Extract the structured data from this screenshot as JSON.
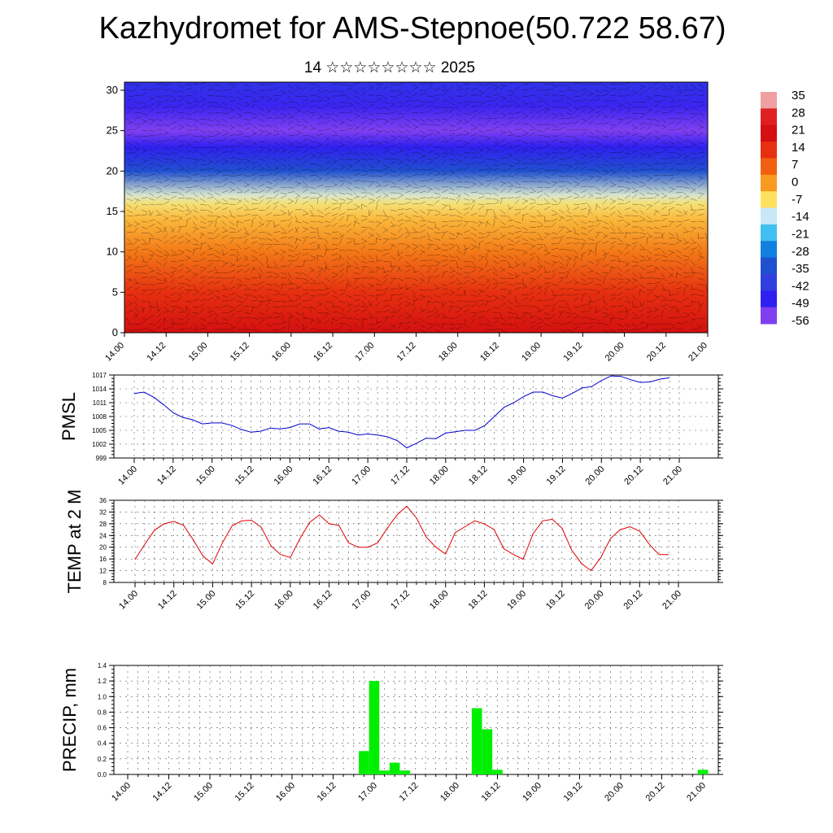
{
  "title": "Kazhydromet for AMS-Stepnoe(50.722 58.67)",
  "subtitle": "14 ☆☆☆☆☆☆☆☆ 2025",
  "colors": {
    "pmsl_line": "#0000cc",
    "temp_line": "#dd0000",
    "precip_bar": "#00ee00"
  },
  "chart_data": [
    {
      "type": "heatmap",
      "title": "",
      "ylim": [
        0,
        31
      ],
      "yticks": [
        "0",
        "5",
        "10",
        "15",
        "20",
        "25",
        "30"
      ],
      "x_tick_labels": [
        "14.00",
        "14.12",
        "15.00",
        "15.12",
        "16.00",
        "16.12",
        "17.00",
        "17.12",
        "18.00",
        "18.12",
        "19.00",
        "19.12",
        "20.00",
        "20.12",
        "21.00"
      ],
      "colorbar": {
        "labels": [
          "35",
          "28",
          "21",
          "14",
          "7",
          "0",
          "-7",
          "-14",
          "-21",
          "-28",
          "-35",
          "-42",
          "-49",
          "-56"
        ],
        "colors": [
          "#f0a0a0",
          "#e02020",
          "#d41010",
          "#e63010",
          "#f06010",
          "#f89a20",
          "#fde060",
          "#c8e8f8",
          "#40c0f0",
          "#1080e0",
          "#2050d0",
          "#3040e0",
          "#3020f0",
          "#8040f0"
        ]
      },
      "temperature_profile": {
        "heights": [
          0,
          5,
          10,
          14,
          16,
          17,
          20,
          23,
          25,
          28,
          31
        ],
        "values": [
          21,
          14,
          4,
          -3,
          -8,
          -12,
          -35,
          -49,
          -56,
          -50,
          -45
        ]
      },
      "legend": "right"
    },
    {
      "type": "line",
      "ylabel": "PMSL",
      "ylim": [
        999,
        1017
      ],
      "yticks": [
        "999",
        "1002",
        "1005",
        "1008",
        "1011",
        "1014",
        "1017"
      ],
      "x_tick_labels": [
        "14.00",
        "14.12",
        "15.00",
        "15.12",
        "16.00",
        "16.12",
        "17.00",
        "17.12",
        "18.00",
        "18.12",
        "19.00",
        "19.12",
        "20.00",
        "20.12",
        "21.00"
      ],
      "x_hours": [
        0,
        3,
        6,
        9,
        12,
        15,
        18,
        21,
        24,
        27,
        30,
        33,
        36,
        39,
        42,
        45,
        48,
        51,
        54,
        57,
        60,
        63,
        66,
        69,
        72,
        75,
        78,
        81,
        84,
        87,
        90,
        93,
        96,
        99,
        102,
        105,
        108,
        111,
        114,
        117,
        120,
        123,
        126,
        129,
        132,
        135,
        138,
        141,
        144,
        147,
        150,
        153,
        156,
        159,
        162,
        165
      ],
      "values": [
        1013.0,
        1013.3,
        1012.2,
        1010.6,
        1008.8,
        1007.8,
        1007.3,
        1006.4,
        1006.6,
        1006.6,
        1006.1,
        1005.2,
        1004.6,
        1004.8,
        1005.5,
        1005.3,
        1005.6,
        1006.4,
        1006.4,
        1005.3,
        1005.6,
        1004.8,
        1004.6,
        1004.0,
        1004.2,
        1004.0,
        1003.6,
        1002.8,
        1001.2,
        1002.2,
        1003.3,
        1003.2,
        1004.4,
        1004.7,
        1005.0,
        1005.0,
        1006.0,
        1008.0,
        1010.0,
        1011.0,
        1012.3,
        1013.3,
        1013.3,
        1012.5,
        1012.0,
        1013.0,
        1014.2,
        1014.5,
        1015.8,
        1016.8,
        1016.7,
        1016.0,
        1015.4,
        1015.5,
        1016.1,
        1016.4
      ]
    },
    {
      "type": "line",
      "ylabel": "TEMP at 2 M",
      "ylim": [
        8,
        36
      ],
      "yticks": [
        "8",
        "12",
        "16",
        "20",
        "24",
        "28",
        "32",
        "36"
      ],
      "x_tick_labels": [
        "14.00",
        "14.12",
        "15.00",
        "15.12",
        "16.00",
        "16.12",
        "17.00",
        "17.12",
        "18.00",
        "18.12",
        "19.00",
        "19.12",
        "20.00",
        "20.12",
        "21.00"
      ],
      "x_hours": [
        0,
        3,
        6,
        9,
        12,
        15,
        18,
        21,
        24,
        27,
        30,
        33,
        36,
        39,
        42,
        45,
        48,
        51,
        54,
        57,
        60,
        63,
        66,
        69,
        72,
        75,
        78,
        81,
        84,
        87,
        90,
        93,
        96,
        99,
        102,
        105,
        108,
        111,
        114,
        117,
        120,
        123,
        126,
        129,
        132,
        135,
        138,
        141,
        144,
        147,
        150,
        153,
        156,
        159,
        162,
        165
      ],
      "values": [
        15.8,
        21.0,
        25.8,
        28.0,
        28.8,
        27.5,
        22.5,
        17.0,
        14.3,
        21.5,
        27.3,
        29.0,
        29.2,
        26.8,
        20.5,
        17.5,
        16.5,
        23.0,
        28.5,
        31.0,
        28.0,
        27.5,
        21.5,
        20.0,
        20.0,
        21.5,
        26.5,
        31.0,
        34.0,
        30.0,
        23.5,
        20.0,
        17.7,
        25.0,
        27.0,
        29.0,
        28.0,
        26.0,
        19.5,
        17.5,
        15.9,
        24.5,
        29.0,
        29.5,
        26.5,
        19.0,
        14.5,
        12.0,
        16.5,
        23.0,
        26.0,
        27.0,
        25.5,
        21.0,
        17.5,
        17.5
      ]
    },
    {
      "type": "bar",
      "ylabel": "PRECIP, mm",
      "ylim": [
        0.0,
        1.4
      ],
      "yticks": [
        "0.0",
        "0.2",
        "0.4",
        "0.6",
        "0.8",
        "1.0",
        "1.2",
        "1.4"
      ],
      "x_tick_labels": [
        "14.00",
        "14.12",
        "15.00",
        "15.12",
        "16.00",
        "16.12",
        "17.00",
        "17.12",
        "18.00",
        "18.12",
        "19.00",
        "19.12",
        "20.00",
        "20.12",
        "21.00"
      ],
      "bars": [
        {
          "hour": 69,
          "value": 0.3
        },
        {
          "hour": 72,
          "value": 1.2
        },
        {
          "hour": 75,
          "value": 0.05
        },
        {
          "hour": 78,
          "value": 0.15
        },
        {
          "hour": 81,
          "value": 0.05
        },
        {
          "hour": 102,
          "value": 0.85
        },
        {
          "hour": 105,
          "value": 0.58
        },
        {
          "hour": 108,
          "value": 0.06
        },
        {
          "hour": 168,
          "value": 0.06
        }
      ]
    }
  ]
}
